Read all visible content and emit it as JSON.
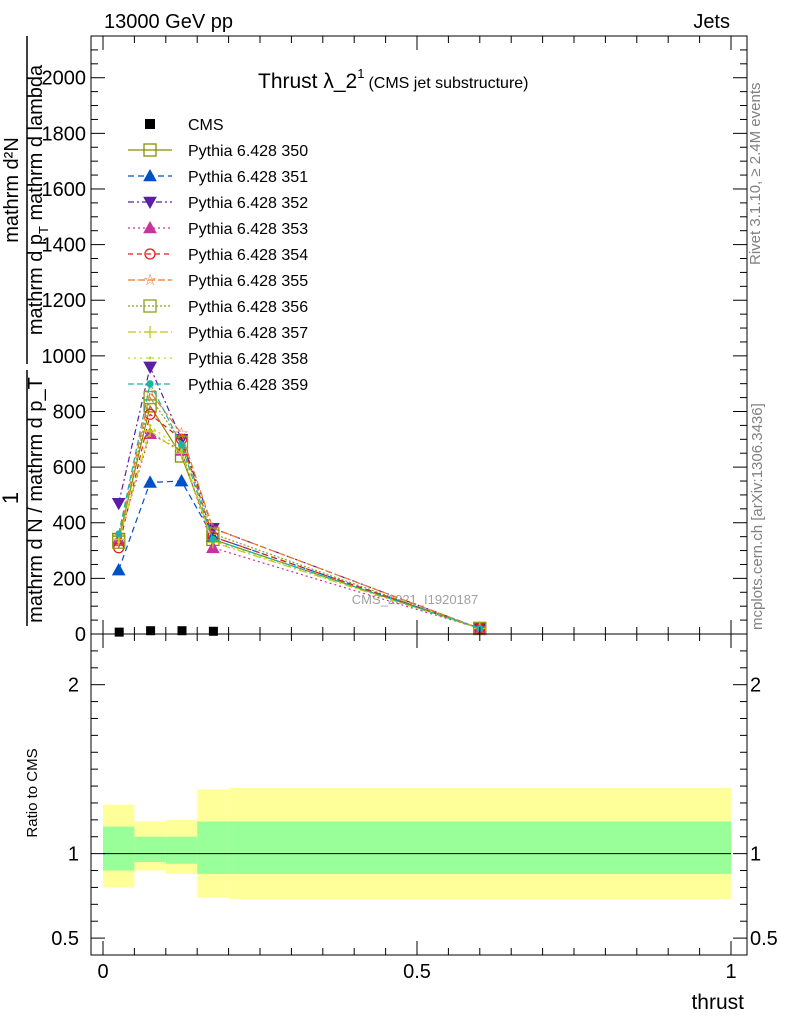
{
  "header": {
    "left": "13000 GeV pp",
    "right": "Jets"
  },
  "side": {
    "rivet": "Rivet 3.1.10, ≥ 2.4M events",
    "mcplots": "mcplots.cern.ch [arXiv:1306.3436]"
  },
  "chart_data": {
    "type": "line",
    "title": "Thrust λ_2",
    "title_sup": "1",
    "title_sub": "(CMS jet substructure)",
    "ylabel_frac_one": "1",
    "ylabel_frac_denominator": "mathrm d N / mathrm d p_T",
    "ylabel_numerator": "mathrm d²N",
    "ylabel_den2_a": "mathrm d p",
    "ylabel_den2_sub": "T",
    "ylabel_den2_b": " mathrm d lambda",
    "ratio_ylabel": "Ratio to CMS",
    "xlabel": "thrust",
    "watermark": "CMS_2021_I1920187",
    "xlim": [
      0,
      1
    ],
    "ylim": [
      0,
      2150
    ],
    "ratio_ylim": [
      0.4,
      2.3
    ],
    "x_ticks": [
      "0",
      "0.5",
      "1"
    ],
    "y_ticks": [
      "0",
      "200",
      "400",
      "600",
      "800",
      "1000",
      "1200",
      "1400",
      "1600",
      "1800",
      "2000"
    ],
    "ratio_ticks": [
      "0.5",
      "1",
      "2"
    ],
    "grid": false,
    "legend_position": "top-left",
    "x": [
      0.025,
      0.075,
      0.125,
      0.175,
      0.6
    ],
    "data": {
      "name": "CMS",
      "x": [
        0.025,
        0.075,
        0.125,
        0.175
      ],
      "values": [
        5,
        10,
        10,
        8
      ]
    },
    "series": [
      {
        "name": "Pythia 6.428 350",
        "color": "#8b8b00",
        "values": [
          340,
          820,
          640,
          340,
          20
        ]
      },
      {
        "name": "Pythia 6.428 351",
        "color": "#0050c8",
        "values": [
          230,
          545,
          550,
          350,
          20
        ]
      },
      {
        "name": "Pythia 6.428 352",
        "color": "#5a1fa6",
        "values": [
          470,
          960,
          700,
          380,
          20
        ]
      },
      {
        "name": "Pythia 6.428 353",
        "color": "#c8329b",
        "values": [
          340,
          720,
          660,
          310,
          20
        ]
      },
      {
        "name": "Pythia 6.428 354",
        "color": "#e81a1a",
        "values": [
          310,
          790,
          700,
          350,
          20
        ]
      },
      {
        "name": "Pythia 6.428 355",
        "color": "#f07828",
        "values": [
          350,
          870,
          720,
          380,
          20
        ]
      },
      {
        "name": "Pythia 6.428 356",
        "color": "#8ca01e",
        "values": [
          330,
          850,
          690,
          360,
          20
        ]
      },
      {
        "name": "Pythia 6.428 357",
        "color": "#c8c81e",
        "values": [
          340,
          730,
          650,
          330,
          20
        ]
      },
      {
        "name": "Pythia 6.428 358",
        "color": "#b4dc14",
        "values": [
          330,
          750,
          660,
          335,
          20
        ]
      },
      {
        "name": "Pythia 6.428 359",
        "color": "#1eb4a0",
        "values": [
          360,
          900,
          680,
          340,
          20
        ]
      }
    ],
    "ratio_bands": {
      "x_edges": [
        0,
        0.05,
        0.1,
        0.15,
        0.2,
        1.0
      ],
      "yellow_lo": [
        0.8,
        0.9,
        0.88,
        0.74,
        0.73
      ],
      "yellow_hi": [
        1.29,
        1.19,
        1.2,
        1.38,
        1.39
      ],
      "green_lo": [
        0.9,
        0.95,
        0.94,
        0.88,
        0.88
      ],
      "green_hi": [
        1.16,
        1.1,
        1.1,
        1.19,
        1.19
      ],
      "yellow_color": "#ffff99",
      "green_color": "#99ff99"
    }
  }
}
